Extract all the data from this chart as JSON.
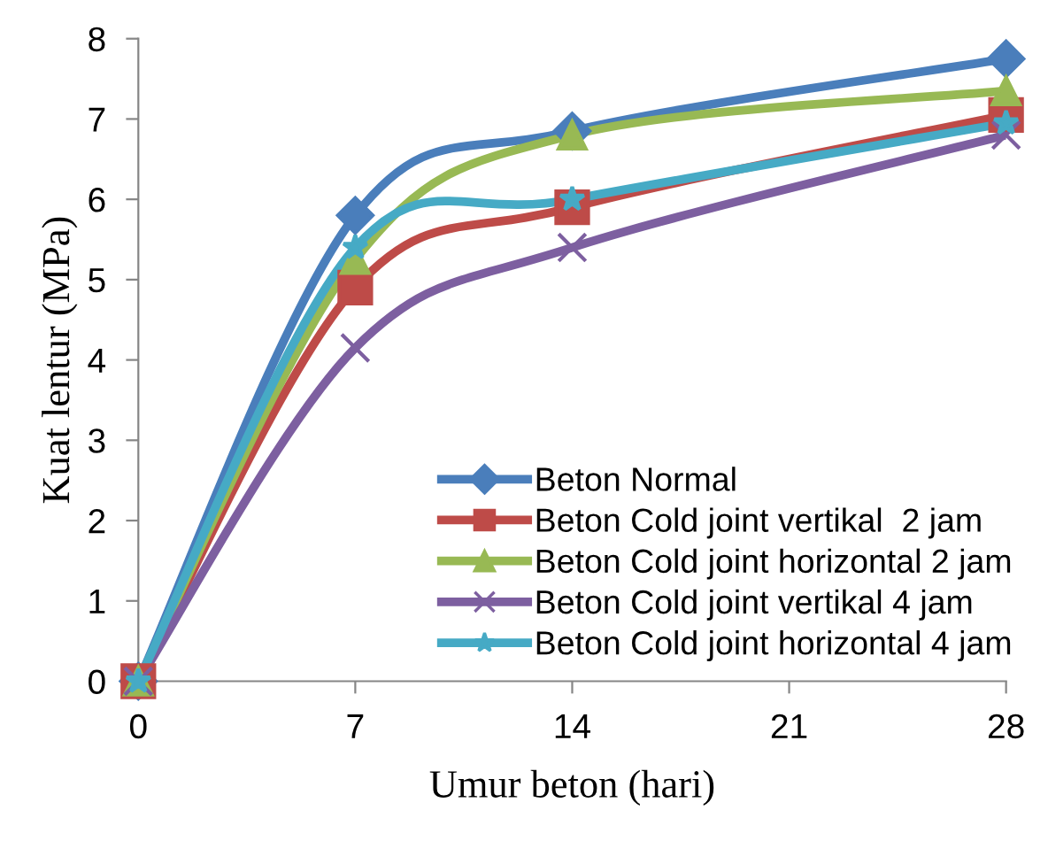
{
  "chart_data": {
    "type": "line",
    "xlabel": "Umur beton (hari)",
    "ylabel": "Kuat lentur (MPa)",
    "x": [
      0,
      7,
      14,
      28
    ],
    "xlim": [
      0,
      28
    ],
    "xticks": [
      0,
      7,
      14,
      21,
      28
    ],
    "ylim": [
      0,
      8
    ],
    "yticks": [
      0,
      1,
      2,
      3,
      4,
      5,
      6,
      7,
      8
    ],
    "grid": false,
    "legend": "bottom right",
    "line_style": "solid",
    "series": [
      {
        "name": "Beton Normal",
        "color": "#4a7ebb",
        "marker": "diamond",
        "values": [
          0,
          5.8,
          6.85,
          7.75
        ]
      },
      {
        "name": "Beton Cold joint vertikal  2 jam",
        "color": "#be4b48",
        "marker": "square",
        "values": [
          0,
          4.9,
          5.9,
          7.05
        ]
      },
      {
        "name": "Beton Cold joint horizontal 2 jam",
        "color": "#98b954",
        "marker": "triangle",
        "values": [
          0,
          5.25,
          6.8,
          7.35
        ]
      },
      {
        "name": "Beton Cold joint vertikal 4 jam",
        "color": "#7d5fa0",
        "marker": "cross",
        "values": [
          0,
          4.15,
          5.4,
          6.8
        ]
      },
      {
        "name": "Beton Cold joint horizontal 4 jam",
        "color": "#46aac5",
        "marker": "star",
        "values": [
          0,
          5.4,
          6.0,
          6.95
        ]
      }
    ]
  }
}
